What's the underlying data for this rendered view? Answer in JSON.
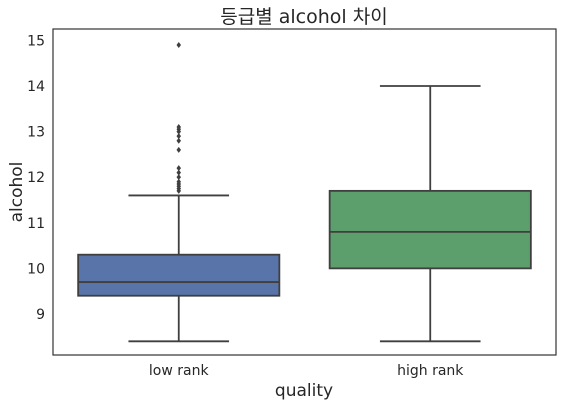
{
  "chart_data": {
    "type": "boxplot",
    "title": "등급별 alcohol 차이",
    "xlabel": "quality",
    "ylabel": "alcohol",
    "categories": [
      "low rank",
      "high rank"
    ],
    "ylim": [
      8.1,
      15.25
    ],
    "yticks": [
      "9",
      "10",
      "11",
      "12",
      "13",
      "14",
      "15"
    ],
    "grid": false,
    "series": [
      {
        "category": "low rank",
        "color": "#5874a8",
        "whisker_low": 8.4,
        "q1": 9.4,
        "median": 9.7,
        "q3": 10.3,
        "whisker_high": 11.6,
        "outliers": [
          11.7,
          11.75,
          11.8,
          11.85,
          11.9,
          12.0,
          12.1,
          12.2,
          12.6,
          12.8,
          12.9,
          13.0,
          13.05,
          13.1,
          14.9
        ]
      },
      {
        "category": "high rank",
        "color": "#5c9e6c",
        "whisker_low": 8.4,
        "q1": 10.0,
        "median": 10.8,
        "q3": 11.7,
        "whisker_high": 14.0,
        "outliers": []
      }
    ]
  }
}
